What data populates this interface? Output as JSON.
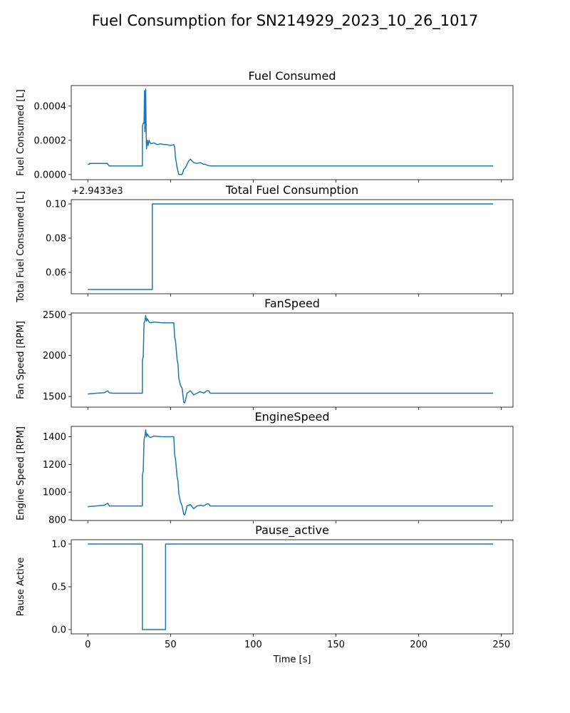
{
  "suptitle": "Fuel Consumption for SN214929_2023_10_26_1017",
  "line_color": "#1f77b4",
  "chart_data": [
    {
      "type": "line",
      "title": "Fuel Consumed",
      "xlabel": "",
      "ylabel": "Fuel Consumed [L]",
      "xlim": [
        -10,
        257
      ],
      "ylim": [
        -3e-05,
        0.00052
      ],
      "yticks": [
        0.0,
        0.0002,
        0.0004
      ],
      "ytick_labels": [
        "0.0000",
        "0.0002",
        "0.0004"
      ],
      "xticks": [
        0,
        50,
        100,
        150,
        200,
        250
      ],
      "xtick_labels": [
        "",
        "",
        "",
        "",
        "",
        ""
      ],
      "grid": false,
      "offset_text": "",
      "series": [
        {
          "x": [
            0,
            1,
            1,
            12,
            12,
            13,
            14,
            33,
            33,
            33.5,
            34,
            34.3,
            34.5,
            35,
            35.3,
            35.5,
            36,
            36.5,
            37,
            38,
            40,
            42,
            44,
            46,
            48,
            50,
            52,
            52.5,
            53,
            54,
            55,
            56,
            57,
            58,
            59,
            60,
            61,
            62,
            63,
            64,
            66,
            68,
            70,
            71,
            72,
            74,
            76,
            80,
            245
          ],
          "y": [
            6e-05,
            6e-05,
            6.5e-05,
            6.5e-05,
            6e-05,
            5e-05,
            5e-05,
            5e-05,
            0.00028,
            0.0003,
            0.0003,
            0.00049,
            0.00025,
            0.0005,
            0.00024,
            0.00015,
            0.0002,
            0.00017,
            0.0002,
            0.00018,
            0.000185,
            0.000175,
            0.00018,
            0.000175,
            0.000175,
            0.00017,
            0.000175,
            0.00016,
            0.0001,
            4e-05,
            0.0,
            0.0,
            0.0,
            3e-05,
            4e-05,
            6e-05,
            8e-05,
            9e-05,
            8e-05,
            7e-05,
            6.5e-05,
            7e-05,
            6e-05,
            6e-05,
            5.5e-05,
            5e-05,
            5e-05,
            5e-05,
            5e-05
          ]
        }
      ]
    },
    {
      "type": "line",
      "title": "Total Fuel Consumption",
      "xlabel": "",
      "ylabel": "Total Fuel Consumed [L]",
      "xlim": [
        -10,
        257
      ],
      "ylim": [
        0.0475,
        0.1025
      ],
      "yticks": [
        0.06,
        0.08,
        0.1
      ],
      "ytick_labels": [
        "0.06",
        "0.08",
        "0.10"
      ],
      "xticks": [
        0,
        50,
        100,
        150,
        200,
        250
      ],
      "xtick_labels": [
        "",
        "",
        "",
        "",
        "",
        ""
      ],
      "grid": false,
      "offset_text": "+2.9433e3",
      "series": [
        {
          "x": [
            0,
            39,
            39,
            245
          ],
          "y": [
            0.05,
            0.05,
            0.1,
            0.1
          ]
        }
      ]
    },
    {
      "type": "line",
      "title": "FanSpeed",
      "xlabel": "",
      "ylabel": "Fan Speed [RPM]",
      "xlim": [
        -10,
        257
      ],
      "ylim": [
        1370,
        2520
      ],
      "yticks": [
        1500,
        2000,
        2500
      ],
      "ytick_labels": [
        "1500",
        "2000",
        "2500"
      ],
      "xticks": [
        0,
        50,
        100,
        150,
        200,
        250
      ],
      "xtick_labels": [
        "",
        "",
        "",
        "",
        "",
        ""
      ],
      "grid": false,
      "offset_text": "",
      "series": [
        {
          "x": [
            0,
            5,
            10,
            12,
            13,
            15,
            20,
            33,
            33,
            33.5,
            34,
            34.5,
            35,
            35.5,
            36,
            37,
            38,
            40,
            45,
            50,
            52,
            52.5,
            53,
            54,
            54.5,
            55,
            56,
            57,
            58,
            58.5,
            59,
            60,
            62,
            64,
            66,
            68,
            70,
            72,
            73,
            74,
            80,
            245
          ],
          "y": [
            1530,
            1540,
            1545,
            1570,
            1545,
            1540,
            1540,
            1540,
            1940,
            1990,
            2400,
            2420,
            2490,
            2420,
            2450,
            2410,
            2400,
            2410,
            2400,
            2400,
            2400,
            2220,
            2180,
            1950,
            1900,
            1720,
            1640,
            1600,
            1430,
            1420,
            1450,
            1540,
            1570,
            1520,
            1540,
            1560,
            1540,
            1570,
            1570,
            1540,
            1540,
            1540
          ]
        }
      ]
    },
    {
      "type": "line",
      "title": "EngineSpeed",
      "xlabel": "",
      "ylabel": "Engine Speed [RPM]",
      "xlim": [
        -10,
        257
      ],
      "ylim": [
        795,
        1475
      ],
      "yticks": [
        800,
        1000,
        1200,
        1400
      ],
      "ytick_labels": [
        "800",
        "1000",
        "1200",
        "1400"
      ],
      "xticks": [
        0,
        50,
        100,
        150,
        200,
        250
      ],
      "xtick_labels": [
        "",
        "",
        "",
        "",
        "",
        ""
      ],
      "grid": false,
      "offset_text": "",
      "series": [
        {
          "x": [
            0,
            5,
            10,
            12,
            13,
            15,
            20,
            33,
            33,
            33.5,
            34,
            34.5,
            35,
            35.5,
            36,
            37,
            38,
            40,
            45,
            50,
            52,
            52.5,
            53,
            54,
            54.5,
            55,
            56,
            57,
            58,
            58.5,
            59,
            60,
            62,
            64,
            66,
            68,
            70,
            72,
            73,
            74,
            80,
            245
          ],
          "y": [
            895,
            900,
            905,
            920,
            900,
            900,
            900,
            900,
            1120,
            1150,
            1380,
            1400,
            1450,
            1400,
            1420,
            1400,
            1395,
            1405,
            1400,
            1400,
            1400,
            1270,
            1240,
            1110,
            1080,
            990,
            930,
            900,
            840,
            835,
            850,
            900,
            910,
            880,
            900,
            905,
            900,
            915,
            915,
            900,
            900,
            900
          ]
        }
      ]
    },
    {
      "type": "line",
      "title": "Pause_active",
      "xlabel": "Time [s]",
      "ylabel": "Pause Active",
      "xlim": [
        -10,
        257
      ],
      "ylim": [
        -0.05,
        1.05
      ],
      "yticks": [
        0.0,
        0.5,
        1.0
      ],
      "ytick_labels": [
        "0.0",
        "0.5",
        "1.0"
      ],
      "xticks": [
        0,
        50,
        100,
        150,
        200,
        250
      ],
      "xtick_labels": [
        "0",
        "50",
        "100",
        "150",
        "200",
        "250"
      ],
      "grid": false,
      "offset_text": "",
      "series": [
        {
          "x": [
            0,
            33,
            33,
            47,
            47,
            245
          ],
          "y": [
            1,
            1,
            0,
            0,
            1,
            1
          ]
        }
      ]
    }
  ]
}
